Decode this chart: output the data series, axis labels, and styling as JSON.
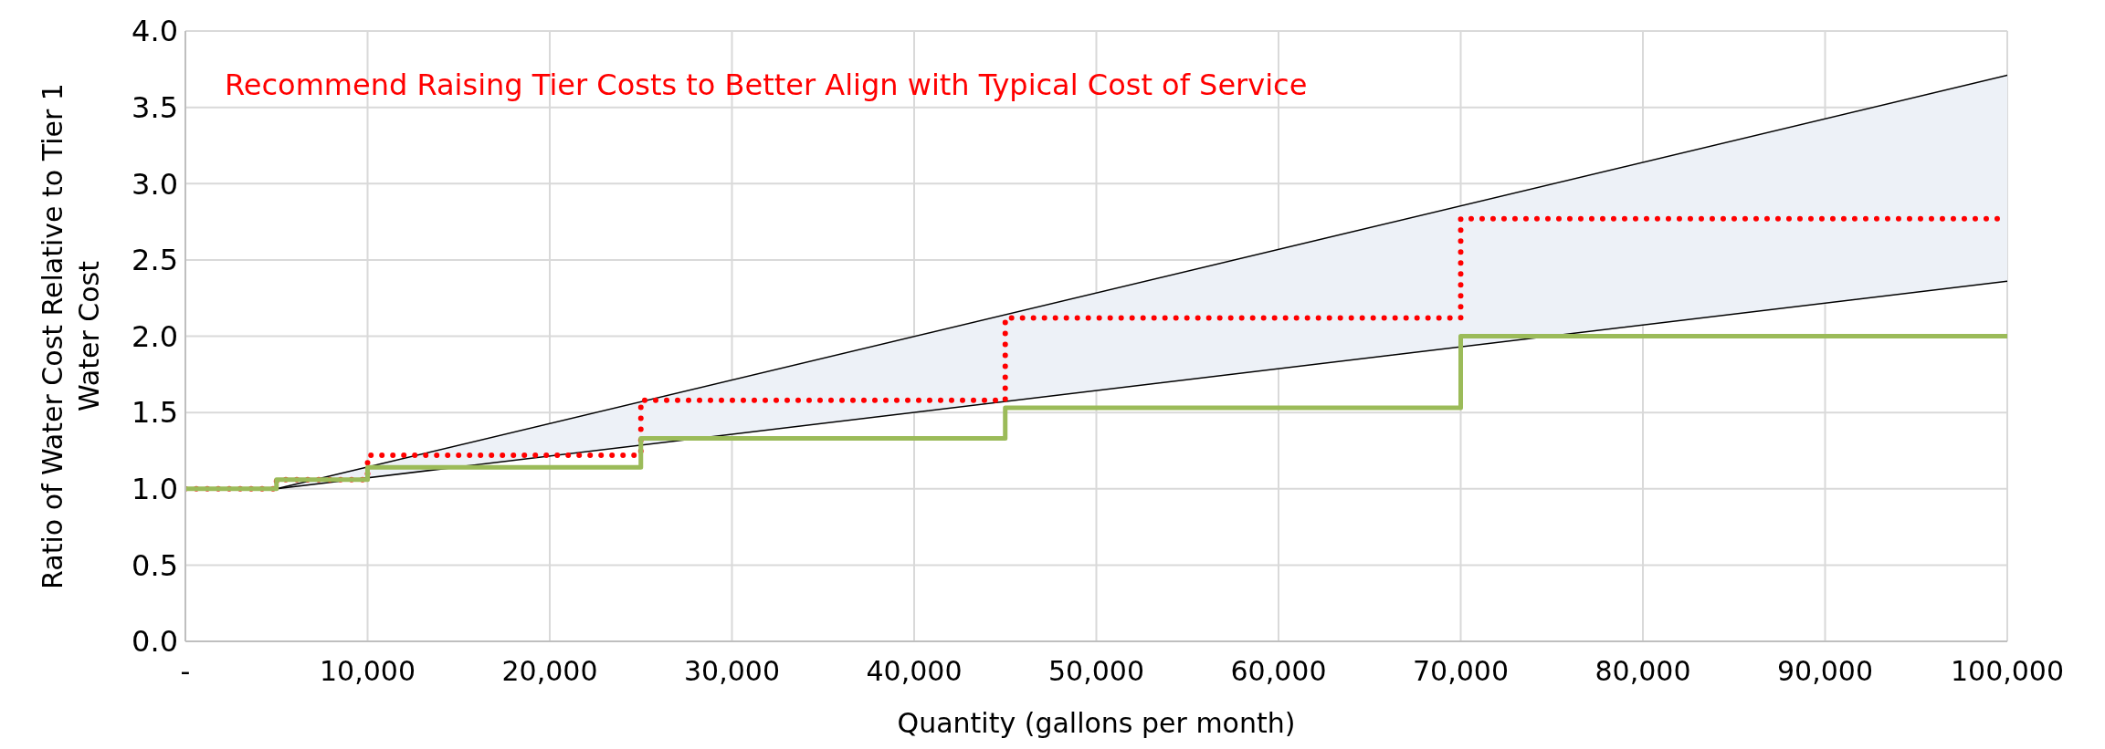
{
  "chart_data": {
    "type": "step",
    "xlabel": "Quantity (gallons per month)",
    "ylabel": "Ratio of Water Cost Relative to Tier 1 Water Cost",
    "annotations": [
      "Recommend Raising Tier Costs to Better Align with Typical Cost of Service"
    ],
    "series": [
      {
        "type": "line",
        "color": "#000000",
        "x": [
          5000,
          100000
        ],
        "values": [
          1.0,
          3.71
        ],
        "lower": [
          1.0,
          2.36
        ],
        "upper": [
          1.0,
          3.71
        ]
      },
      {
        "type": "line",
        "color": "#000000",
        "x": [
          5000,
          100000
        ],
        "values": [
          1.0,
          2.36
        ]
      },
      {
        "color": "#ff0000",
        "line_style": "dotted",
        "x": [
          0,
          5000,
          10000,
          25000,
          45000,
          70000,
          100000
        ],
        "values": [
          1.0,
          1.06,
          1.22,
          1.58,
          2.12,
          2.77,
          2.77
        ]
      },
      {
        "color": "#9bbb59",
        "line_style": "solid",
        "x": [
          0,
          5000,
          10000,
          25000,
          45000,
          70000,
          100000
        ],
        "values": [
          1.0,
          1.06,
          1.14,
          1.33,
          1.53,
          2.0,
          2.0
        ]
      }
    ],
    "xlim": [
      0,
      100000
    ],
    "xticks": [
      {
        "value": 0,
        "label": "-"
      },
      {
        "value": 10000,
        "label": "10,000"
      },
      {
        "value": 20000,
        "label": "20,000"
      },
      {
        "value": 30000,
        "label": "30,000"
      },
      {
        "value": 40000,
        "label": "40,000"
      },
      {
        "value": 50000,
        "label": "50,000"
      },
      {
        "value": 60000,
        "label": "60,000"
      },
      {
        "value": 70000,
        "label": "70,000"
      },
      {
        "value": 80000,
        "label": "80,000"
      },
      {
        "value": 90000,
        "label": "90,000"
      },
      {
        "value": 100000,
        "label": "100,000"
      }
    ],
    "ylim": [
      0,
      4
    ],
    "yticks": [
      {
        "value": 0,
        "label": "0.0"
      },
      {
        "value": 0.5,
        "label": "0.5"
      },
      {
        "value": 1,
        "label": "1.0"
      },
      {
        "value": 1.5,
        "label": "1.5"
      },
      {
        "value": 2,
        "label": "2.0"
      },
      {
        "value": 2.5,
        "label": "2.5"
      },
      {
        "value": 3,
        "label": "3.0"
      },
      {
        "value": 3.5,
        "label": "3.5"
      },
      {
        "value": 4,
        "label": "4.0"
      }
    ],
    "grid": true,
    "legend": false,
    "marker": "none"
  }
}
